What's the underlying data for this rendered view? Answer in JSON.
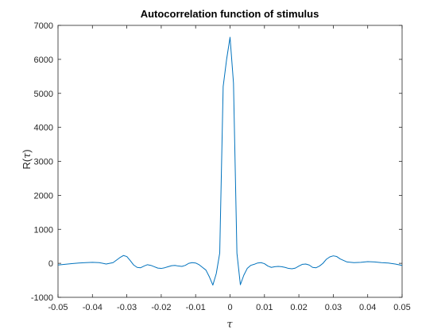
{
  "chart_data": {
    "type": "line",
    "title": "Autocorrelation function of stimulus",
    "xlabel": "τ",
    "ylabel_prefix": "R(",
    "ylabel_var": "τ",
    "ylabel_suffix": ")",
    "xlim": [
      -0.05,
      0.05
    ],
    "ylim": [
      -1000,
      7000
    ],
    "xticks": [
      -0.05,
      -0.04,
      -0.03,
      -0.02,
      -0.01,
      0,
      0.01,
      0.02,
      0.03,
      0.04,
      0.05
    ],
    "xtick_labels": [
      "-0.05",
      "-0.04",
      "-0.03",
      "-0.02",
      "-0.01",
      "0",
      "0.01",
      "0.02",
      "0.03",
      "0.04",
      "0.05"
    ],
    "yticks": [
      -1000,
      0,
      1000,
      2000,
      3000,
      4000,
      5000,
      6000,
      7000
    ],
    "ytick_labels": [
      "-1000",
      "0",
      "1000",
      "2000",
      "3000",
      "4000",
      "5000",
      "6000",
      "7000"
    ],
    "grid": false,
    "colors": {
      "series": "#0072bd",
      "axes": "#262626"
    },
    "series": [
      {
        "x": [
          -0.05,
          -0.048,
          -0.046,
          -0.044,
          -0.042,
          -0.04,
          -0.038,
          -0.036,
          -0.034,
          -0.032,
          -0.031,
          -0.03,
          -0.029,
          -0.028,
          -0.027,
          -0.026,
          -0.025,
          -0.024,
          -0.023,
          -0.022,
          -0.021,
          -0.02,
          -0.019,
          -0.018,
          -0.017,
          -0.016,
          -0.015,
          -0.014,
          -0.013,
          -0.012,
          -0.011,
          -0.01,
          -0.009,
          -0.008,
          -0.007,
          -0.006,
          -0.005,
          -0.004,
          -0.003,
          -0.002,
          -0.001,
          0.0,
          0.001,
          0.002,
          0.003,
          0.004,
          0.005,
          0.006,
          0.007,
          0.008,
          0.009,
          0.01,
          0.011,
          0.012,
          0.013,
          0.014,
          0.015,
          0.016,
          0.017,
          0.018,
          0.019,
          0.02,
          0.021,
          0.022,
          0.023,
          0.024,
          0.025,
          0.026,
          0.027,
          0.028,
          0.029,
          0.03,
          0.031,
          0.032,
          0.034,
          0.036,
          0.038,
          0.04,
          0.042,
          0.044,
          0.046,
          0.048,
          0.05
        ],
        "y": [
          -50,
          -30,
          -10,
          10,
          20,
          30,
          20,
          -20,
          20,
          170,
          230,
          200,
          80,
          -50,
          -120,
          -130,
          -80,
          -40,
          -60,
          -100,
          -140,
          -150,
          -130,
          -100,
          -70,
          -60,
          -80,
          -90,
          -60,
          0,
          20,
          10,
          -40,
          -120,
          -200,
          -400,
          -640,
          -300,
          300,
          5200,
          6000,
          6650,
          5300,
          300,
          -630,
          -350,
          -150,
          -60,
          -30,
          10,
          20,
          -10,
          -80,
          -120,
          -100,
          -90,
          -100,
          -120,
          -150,
          -160,
          -140,
          -80,
          -30,
          -20,
          -50,
          -120,
          -130,
          -80,
          0,
          120,
          190,
          220,
          200,
          130,
          40,
          20,
          30,
          50,
          40,
          20,
          10,
          -20,
          -60
        ]
      }
    ]
  }
}
